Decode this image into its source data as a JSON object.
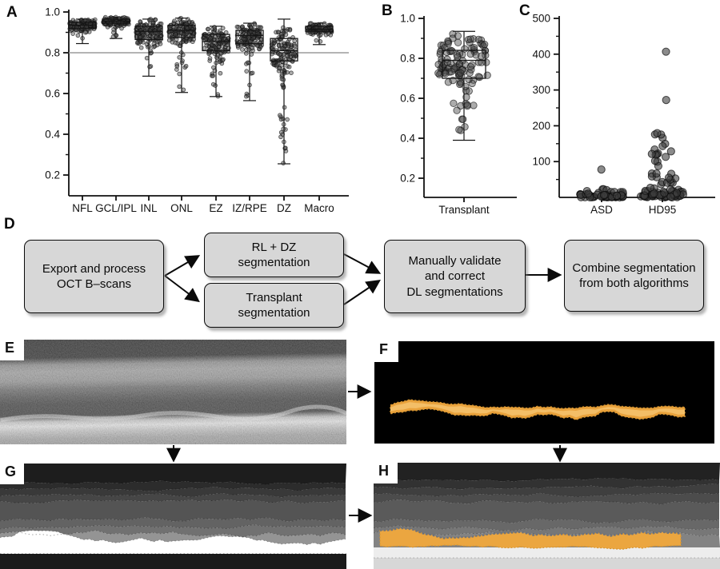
{
  "panels": {
    "A": {
      "label": "A"
    },
    "B": {
      "label": "B"
    },
    "C": {
      "label": "C"
    },
    "D": {
      "label": "D"
    },
    "E": {
      "label": "E",
      "description": "OCT B-scan"
    },
    "F": {
      "label": "F",
      "description": "Transplant segmentation mask"
    },
    "G": {
      "label": "G",
      "description": "Retinal layer and DZ segmentation map"
    },
    "H": {
      "label": "H",
      "description": "Combined segmentation from both algorithms"
    }
  },
  "flowchart": {
    "boxes": [
      {
        "id": "export",
        "text": "Export and process\nOCT B–scans"
      },
      {
        "id": "rl-dz",
        "text": "RL + DZ\nsegmentation"
      },
      {
        "id": "transplant",
        "text": "Transplant\nsegmentation"
      },
      {
        "id": "validate",
        "text": "Manually validate\nand correct\nDL segmentations"
      },
      {
        "id": "combine",
        "text": "Combine segmentation\nfrom both algorithms"
      }
    ],
    "box_fill": "#d7d7d7",
    "box_border": "#0a0a0a"
  },
  "chart_data": [
    {
      "id": "A",
      "type": "box-swarm",
      "title": "",
      "ylabel": "",
      "ylim": [
        0.1,
        1.0
      ],
      "yticks": [
        1.0,
        0.8,
        0.6,
        0.4,
        0.2
      ],
      "ytick_labels": [
        "1.0",
        "0.8",
        "0.6",
        "0.4",
        "0.2"
      ],
      "reference_line": 0.8,
      "grid": false,
      "categories": [
        "NFL",
        "GCL/IPL",
        "INL",
        "ONL",
        "EZ",
        "IZ/RPE",
        "DZ",
        "Macro"
      ],
      "series": [
        {
          "category": "NFL",
          "min": 0.845,
          "q1": 0.92,
          "median": 0.935,
          "q3": 0.95,
          "max": 0.965,
          "n": 130,
          "sd": 0.016,
          "tail": 0.05
        },
        {
          "category": "GCL/IPL",
          "min": 0.87,
          "q1": 0.945,
          "median": 0.955,
          "q3": 0.965,
          "max": 0.975,
          "n": 130,
          "sd": 0.013,
          "tail": 0.05
        },
        {
          "category": "INL",
          "min": 0.685,
          "q1": 0.865,
          "median": 0.905,
          "q3": 0.93,
          "max": 0.965,
          "n": 140,
          "sd": 0.036,
          "tail": 0.1
        },
        {
          "category": "ONL",
          "min": 0.605,
          "q1": 0.875,
          "median": 0.91,
          "q3": 0.935,
          "max": 0.97,
          "n": 140,
          "sd": 0.035,
          "tail": 0.1
        },
        {
          "category": "EZ",
          "min": 0.585,
          "q1": 0.81,
          "median": 0.855,
          "q3": 0.89,
          "max": 0.93,
          "n": 140,
          "sd": 0.043,
          "tail": 0.12
        },
        {
          "category": "IZ/RPE",
          "min": 0.565,
          "q1": 0.845,
          "median": 0.885,
          "q3": 0.91,
          "max": 0.945,
          "n": 140,
          "sd": 0.038,
          "tail": 0.1
        },
        {
          "category": "DZ",
          "min": 0.255,
          "q1": 0.76,
          "median": 0.81,
          "q3": 0.87,
          "max": 0.965,
          "n": 150,
          "sd": 0.058,
          "tail": 0.18
        },
        {
          "category": "Macro",
          "min": 0.84,
          "q1": 0.905,
          "median": 0.915,
          "q3": 0.93,
          "max": 0.945,
          "n": 110,
          "sd": 0.015,
          "tail": 0.04
        }
      ]
    },
    {
      "id": "B",
      "type": "box-swarm",
      "title": "",
      "ylim": [
        0.1,
        1.0
      ],
      "yticks": [
        1.0,
        0.8,
        0.6,
        0.4,
        0.2
      ],
      "ytick_labels": [
        "1.0",
        "0.8",
        "0.6",
        "0.4",
        "0.2"
      ],
      "grid": false,
      "categories": [
        "Transplant"
      ],
      "series": [
        {
          "category": "Transplant",
          "min": 0.39,
          "q1": 0.7,
          "median": 0.79,
          "q3": 0.84,
          "max": 0.935,
          "n": 115,
          "sd": 0.065,
          "tail": 0.16
        }
      ]
    },
    {
      "id": "C",
      "type": "swarm",
      "title": "",
      "ylim": [
        0,
        500
      ],
      "yticks": [
        500,
        400,
        300,
        200,
        100
      ],
      "ytick_labels": [
        "500",
        "400",
        "300",
        "200",
        "100"
      ],
      "grid": false,
      "categories": [
        "ASD",
        "HD95"
      ],
      "series": [
        {
          "category": "ASD",
          "cluster": {
            "n": 65,
            "scale": 6,
            "max": 28
          },
          "spread": null,
          "outliers": [
            78
          ]
        },
        {
          "category": "HD95",
          "cluster": {
            "n": 60,
            "scale": 10,
            "max": 45
          },
          "spread": {
            "n": 26,
            "lo": 40,
            "hi": 185
          },
          "outliers": [
            272,
            407
          ]
        }
      ]
    }
  ],
  "images": {
    "E": {
      "gradient_stops": [
        [
          0,
          "#101010"
        ],
        [
          0.18,
          "#151515"
        ],
        [
          0.24,
          "#848484"
        ],
        [
          0.3,
          "#9c9c9c"
        ],
        [
          0.38,
          "#8e8e8e"
        ],
        [
          0.45,
          "#606060"
        ],
        [
          0.52,
          "#3f3f3f"
        ],
        [
          0.58,
          "#2b2b2b"
        ],
        [
          0.68,
          "#282828"
        ],
        [
          0.73,
          "#c8c8c8"
        ],
        [
          0.77,
          "#ececec"
        ],
        [
          0.82,
          "#c4c4c4"
        ],
        [
          0.88,
          "#a0a0a0"
        ],
        [
          1,
          "#8d8d8d"
        ]
      ]
    },
    "F": {
      "background": "#000000",
      "band_fill": "#e9a23c",
      "band_core": "#f4c16b",
      "band_edge": "#d8952e"
    },
    "G": {
      "layers": [
        "#1d1d1d",
        "#2c2c2c",
        "#393939",
        "#464646",
        "#545454",
        "#636363",
        "#717171",
        "#949494",
        "#ffffff"
      ],
      "bottom_band": "#1b1b1b"
    },
    "H": {
      "layers": [
        "#222222",
        "#323232",
        "#3f3f3f",
        "#4c4c4c",
        "#5a5a5a",
        "#686868",
        "#777777",
        "#838383"
      ],
      "transplant_fill": "#eba640",
      "transplant_edge": "#d8952e",
      "transplant_top_line": "#5c6b87",
      "below_band": "#ededed",
      "bottom_band": "#d7d7d7"
    }
  },
  "colors": {
    "point_fill": "#464646",
    "axis": "#111111",
    "reference_line": "#9b9b9b",
    "arrow": "#0a0a0a"
  }
}
